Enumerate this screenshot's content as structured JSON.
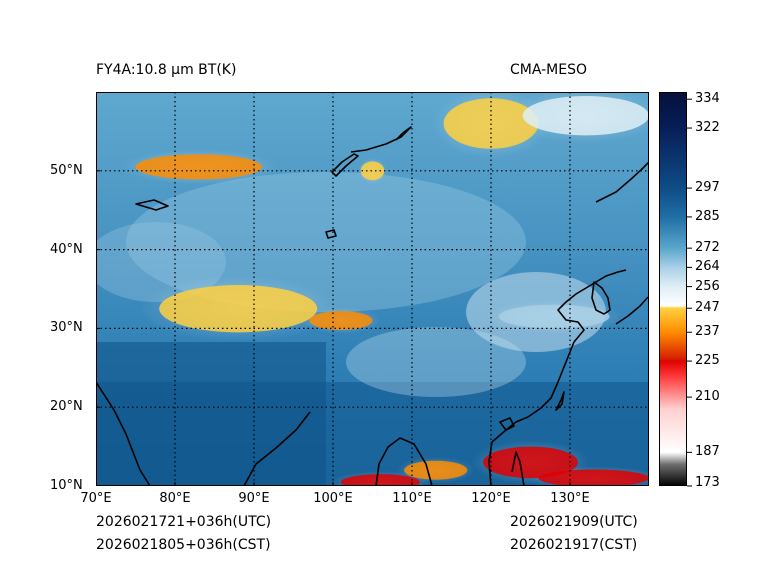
{
  "header": {
    "left_title": "FY4A:10.8 µm BT(K)",
    "right_title": "CMA-MESO"
  },
  "footer": {
    "init_utc": "2026021721+036h(UTC)",
    "init_cst": "2026021805+036h(CST)",
    "valid_utc": "2026021909(UTC)",
    "valid_cst": "2026021917(CST)"
  },
  "map": {
    "lon_range": [
      70,
      140
    ],
    "lat_range": [
      10,
      60
    ],
    "lon_ticks": [
      "70°E",
      "80°E",
      "90°E",
      "100°E",
      "110°E",
      "120°E",
      "130°E"
    ],
    "lat_ticks": [
      "10°N",
      "20°N",
      "30°N",
      "40°N",
      "50°N"
    ]
  },
  "colorbar": {
    "range": [
      173,
      337
    ],
    "ticks": [
      "334",
      "322",
      "297",
      "285",
      "272",
      "264",
      "256",
      "247",
      "237",
      "225",
      "210",
      "187",
      "173"
    ],
    "stops": [
      {
        "v": 173,
        "c": "#000000"
      },
      {
        "v": 182,
        "c": "#6e6e6e"
      },
      {
        "v": 187,
        "c": "#ffffff"
      },
      {
        "v": 205,
        "c": "#ffd0d0"
      },
      {
        "v": 218,
        "c": "#ff4040"
      },
      {
        "v": 225,
        "c": "#e00000"
      },
      {
        "v": 226,
        "c": "#d62000"
      },
      {
        "v": 237,
        "c": "#ff8c00"
      },
      {
        "v": 247,
        "c": "#ffd040"
      },
      {
        "v": 248,
        "c": "#ffffff"
      },
      {
        "v": 256,
        "c": "#dfeef6"
      },
      {
        "v": 264,
        "c": "#a8d0e6"
      },
      {
        "v": 272,
        "c": "#5aa6cc"
      },
      {
        "v": 285,
        "c": "#1f6fa4"
      },
      {
        "v": 297,
        "c": "#0e4c86"
      },
      {
        "v": 322,
        "c": "#081e58"
      },
      {
        "v": 337,
        "c": "#04103a"
      }
    ]
  },
  "cloud_regions": [
    {
      "name": "siberia-north-cloud",
      "lon": 120,
      "lat": 56,
      "rx": 6,
      "ry": 3.2,
      "bt": 240
    },
    {
      "name": "siberia-northeast-cloud",
      "lon": 132,
      "lat": 57,
      "rx": 8,
      "ry": 2.5,
      "bt": 250
    },
    {
      "name": "mongolia-west-cloud",
      "lon": 83,
      "lat": 50.5,
      "rx": 8,
      "ry": 1.6,
      "bt": 232
    },
    {
      "name": "lake-baikal-cloud",
      "lon": 105,
      "lat": 50,
      "rx": 1.5,
      "ry": 1.2,
      "bt": 238
    },
    {
      "name": "tibet-plateau-cloud",
      "lon": 88,
      "lat": 32.5,
      "rx": 10,
      "ry": 3,
      "bt": 242
    },
    {
      "name": "tibet-east-cloud",
      "lon": 101,
      "lat": 31,
      "rx": 4,
      "ry": 1.2,
      "bt": 236
    },
    {
      "name": "philippines-cloud",
      "lon": 125,
      "lat": 13,
      "rx": 6,
      "ry": 2,
      "bt": 222
    },
    {
      "name": "south-china-sea-cloud",
      "lon": 113,
      "lat": 12,
      "rx": 4,
      "ry": 1.2,
      "bt": 230
    },
    {
      "name": "sumatra-cloud",
      "lon": 106,
      "lat": 10.5,
      "rx": 5,
      "ry": 1,
      "bt": 225
    },
    {
      "name": "pacific-band-cloud",
      "lon": 133,
      "lat": 11,
      "rx": 7,
      "ry": 1.1,
      "bt": 222
    },
    {
      "name": "east-china-sea-cloud",
      "lon": 128,
      "lat": 31.5,
      "rx": 7,
      "ry": 1.5,
      "bt": 258
    }
  ]
}
